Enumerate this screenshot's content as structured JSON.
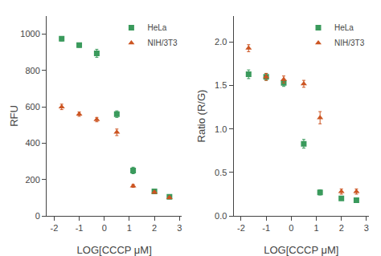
{
  "chart_data": [
    {
      "type": "scatter",
      "xlabel": "LOG[CCCP μM]",
      "ylabel": "RFU",
      "x": [
        -1.7,
        -1.0,
        -0.3,
        0.5,
        1.15,
        2.0,
        2.6
      ],
      "series": [
        {
          "name": "HeLa",
          "color": "#3a9a5c",
          "marker": "square",
          "values": [
            975,
            940,
            895,
            560,
            250,
            135,
            105
          ],
          "errors": [
            12,
            12,
            22,
            18,
            18,
            8,
            6
          ]
        },
        {
          "name": "NIH/3T3",
          "color": "#cc5522",
          "marker": "triangle-up",
          "values": [
            600,
            560,
            530,
            460,
            165,
            130,
            100
          ],
          "errors": [
            15,
            12,
            12,
            18,
            8,
            6,
            6
          ]
        }
      ],
      "xlim": [
        -2.3,
        3.1
      ],
      "xticks": [
        -2,
        -1,
        0,
        1,
        2,
        3
      ],
      "ylim": [
        0,
        1100
      ],
      "yticks": [
        0,
        200,
        400,
        600,
        800,
        1000
      ],
      "grid": false,
      "legend": "upper right"
    },
    {
      "type": "scatter",
      "xlabel": "LOG[CCCP μM]",
      "ylabel": "Ratio (R/G)",
      "x": [
        -1.7,
        -1.0,
        -0.3,
        0.5,
        1.15,
        2.0,
        2.6
      ],
      "series": [
        {
          "name": "HeLa",
          "color": "#3a9a5c",
          "marker": "square",
          "values": [
            1.63,
            1.6,
            1.53,
            0.83,
            0.27,
            0.2,
            0.18
          ],
          "errors": [
            0.05,
            0.04,
            0.04,
            0.05,
            0.03,
            0.02,
            0.02
          ]
        },
        {
          "name": "NIH/3T3",
          "color": "#cc5522",
          "marker": "triangle-up",
          "values": [
            1.93,
            1.6,
            1.57,
            1.52,
            1.13,
            0.28,
            0.28
          ],
          "errors": [
            0.04,
            0.04,
            0.04,
            0.04,
            0.07,
            0.03,
            0.03
          ]
        }
      ],
      "xlim": [
        -2.3,
        3.1
      ],
      "xticks": [
        -2,
        -1,
        0,
        1,
        2,
        3
      ],
      "ylim": [
        0,
        2.3
      ],
      "yticks": [
        {
          "value": 0.0,
          "label": "0.0"
        },
        0.5,
        {
          "value": 1.0,
          "label": "1.0"
        },
        1.5,
        {
          "value": 2.0,
          "label": "2.0"
        }
      ],
      "grid": false,
      "legend": "upper right"
    }
  ]
}
